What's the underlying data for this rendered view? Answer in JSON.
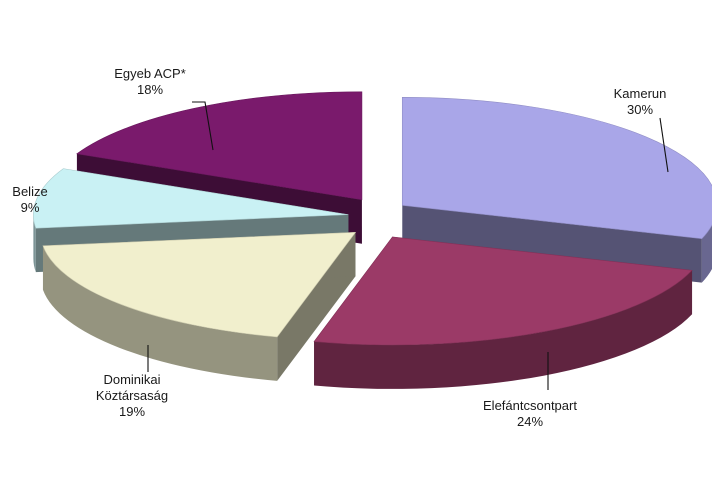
{
  "chart_data": {
    "type": "pie",
    "style": "3d-exploded",
    "slices": [
      {
        "label": "Kamerun",
        "value": 30,
        "display": "30%",
        "color": "#a9a6e8"
      },
      {
        "label": "Elefántcsontpart",
        "value": 24,
        "display": "24%",
        "color": "#9b3a67"
      },
      {
        "label": "Dominikai Köztársaság",
        "label_lines": [
          "Dominikai",
          "Köztársaság"
        ],
        "value": 19,
        "display": "19%",
        "color": "#f1efcd"
      },
      {
        "label": "Belize",
        "value": 9,
        "display": "9%",
        "color": "#c9f1f4"
      },
      {
        "label": "Egyeb ACP*",
        "value": 18,
        "display": "18%",
        "color": "#7a1a6c"
      }
    ],
    "legend": "none",
    "data_labels": "outside-with-leader-lines"
  }
}
